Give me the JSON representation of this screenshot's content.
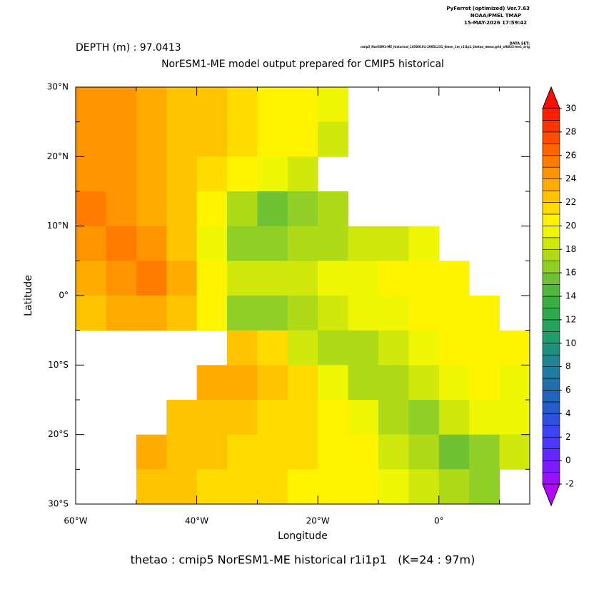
{
  "chart_data": {
    "type": "heatmap",
    "title": "NorESM1-ME model output prepared for CMIP5 historical",
    "subtitle": "DEPTH (m) : 97.0413",
    "header": [
      "PyFerret (optimized) Ver.7.63",
      "NOAA/PMEL TMAP",
      "15-MAY-2026 17:59:42"
    ],
    "dataset_label": "DATA SET:",
    "dataset": "cmip5_NorESM1-ME_historical_18500101-20051231_0mon_1m_r1i1p1_thetao_mean.grid_afb025-lev1_orig",
    "x_label": "Longitude",
    "y_label": "Latitude",
    "footer": "thetao : cmip5 NorESM1-ME historical r1i1p1   (K=24 : 97m)",
    "xlim": [
      -60,
      15
    ],
    "ylim": [
      -30,
      30
    ],
    "xticks": [
      {
        "value": -60,
        "label": "60°W"
      },
      {
        "value": -40,
        "label": "40°W"
      },
      {
        "value": -20,
        "label": "20°W"
      },
      {
        "value": 0,
        "label": "0°"
      }
    ],
    "xminorticks": [
      -50,
      -30,
      -10,
      10
    ],
    "yticks": [
      {
        "value": 30,
        "label": "30°N"
      },
      {
        "value": 20,
        "label": "20°N"
      },
      {
        "value": 10,
        "label": "10°N"
      },
      {
        "value": 0,
        "label": "0°"
      },
      {
        "value": -10,
        "label": "10°S"
      },
      {
        "value": -20,
        "label": "20°S"
      },
      {
        "value": -30,
        "label": "30°S"
      }
    ],
    "yminorticks": [
      25,
      15,
      5,
      -5,
      -15,
      -25
    ],
    "x": [
      -57.5,
      -52.5,
      -47.5,
      -42.5,
      -37.5,
      -32.5,
      -27.5,
      -22.5,
      -17.5,
      -12.5,
      -7.5,
      -2.5,
      2.5,
      7.5,
      12.5
    ],
    "y": [
      27.5,
      22.5,
      17.5,
      12.5,
      7.5,
      2.5,
      -2.5,
      -7.5,
      -12.5,
      -17.5,
      -22.5,
      -27.5
    ],
    "z": [
      [
        24,
        24,
        23,
        22,
        22,
        21,
        20,
        20,
        19,
        null,
        null,
        null,
        null,
        null,
        null
      ],
      [
        24,
        24,
        23,
        22,
        22,
        21,
        20,
        20,
        18,
        null,
        null,
        null,
        null,
        null,
        null
      ],
      [
        24,
        24,
        23,
        22,
        21,
        20,
        19,
        18,
        null,
        null,
        null,
        null,
        null,
        null,
        null
      ],
      [
        25,
        24,
        23,
        22,
        20,
        17,
        15,
        16,
        17,
        null,
        null,
        null,
        null,
        null,
        null
      ],
      [
        24,
        25,
        24,
        22,
        19,
        16,
        16,
        17,
        17,
        18,
        18,
        19,
        null,
        null,
        null
      ],
      [
        23,
        24,
        25,
        23,
        20,
        18,
        18,
        18,
        19,
        19,
        20,
        20,
        20,
        null,
        null
      ],
      [
        22,
        23,
        23,
        22,
        20,
        16,
        16,
        17,
        18,
        19,
        19,
        20,
        20,
        20,
        null
      ],
      [
        null,
        null,
        null,
        null,
        null,
        22,
        21,
        18,
        17,
        17,
        18,
        19,
        20,
        20,
        20
      ],
      [
        null,
        null,
        null,
        null,
        23,
        23,
        22,
        21,
        19,
        17,
        17,
        18,
        19,
        20,
        19
      ],
      [
        null,
        null,
        null,
        22,
        22,
        22,
        21,
        21,
        20,
        19,
        17,
        16,
        18,
        19,
        19
      ],
      [
        null,
        null,
        23,
        22,
        22,
        21,
        21,
        21,
        20,
        20,
        18,
        17,
        15,
        16,
        18
      ],
      [
        null,
        null,
        22,
        22,
        21,
        21,
        21,
        20,
        20,
        20,
        19,
        18,
        17,
        16,
        null
      ]
    ],
    "colorbar_lim": [
      -2,
      30
    ],
    "colorbar_ticks": [
      30,
      28,
      26,
      24,
      22,
      20,
      18,
      16,
      14,
      12,
      10,
      8,
      6,
      4,
      2,
      0,
      -2
    ],
    "colorscale": [
      [
        -3,
        "#c000ff"
      ],
      [
        0,
        "#7020ff"
      ],
      [
        2,
        "#4040ff"
      ],
      [
        5,
        "#2060c0"
      ],
      [
        8,
        "#20809a"
      ],
      [
        11,
        "#20a060"
      ],
      [
        14,
        "#40b040"
      ],
      [
        16,
        "#80c830"
      ],
      [
        18,
        "#c0e010"
      ],
      [
        20,
        "#ffff00"
      ],
      [
        22,
        "#ffd000"
      ],
      [
        24,
        "#ffa000"
      ],
      [
        26,
        "#ff7000"
      ],
      [
        28,
        "#ff4000"
      ],
      [
        31,
        "#ff0000"
      ]
    ]
  }
}
